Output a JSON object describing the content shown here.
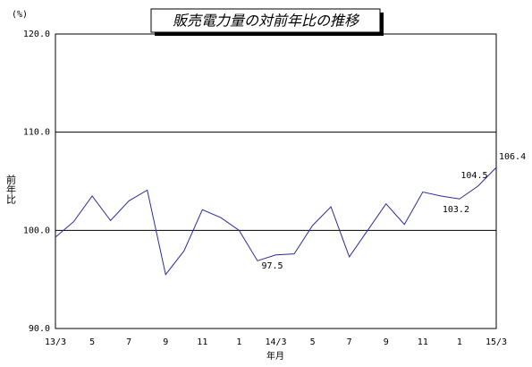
{
  "chart_data": {
    "type": "line",
    "title": "販売電力量の対前年比の推移",
    "y_unit": "(%)",
    "y_label": "前年比",
    "x_label": "年月",
    "categories": [
      "13/3",
      null,
      "5",
      null,
      "7",
      null,
      "9",
      null,
      "11",
      null,
      "1",
      null,
      "14/3",
      null,
      "5",
      null,
      "7",
      null,
      "9",
      null,
      "11",
      null,
      "1",
      null,
      "15/3"
    ],
    "values": [
      99.3,
      100.9,
      103.5,
      101.0,
      103.0,
      104.1,
      95.5,
      97.9,
      102.1,
      101.3,
      100.0,
      96.9,
      97.5,
      97.6,
      100.5,
      102.4,
      97.3,
      100.0,
      102.7,
      100.6,
      103.9,
      103.5,
      103.2,
      104.5,
      106.4
    ],
    "value_labels": [
      null,
      null,
      null,
      null,
      null,
      null,
      null,
      null,
      null,
      null,
      null,
      null,
      "97.5",
      null,
      null,
      null,
      null,
      null,
      null,
      null,
      null,
      null,
      "103.2",
      "104.5",
      "106.4"
    ],
    "color": "#2b2b9e",
    "ylim": [
      90,
      120
    ],
    "yticks": [
      {
        "value": 90,
        "label": "90.0"
      },
      {
        "value": 100,
        "label": "100.0"
      },
      {
        "value": 110,
        "label": "110.0"
      },
      {
        "value": 120,
        "label": "120.0"
      }
    ],
    "grid": true
  }
}
